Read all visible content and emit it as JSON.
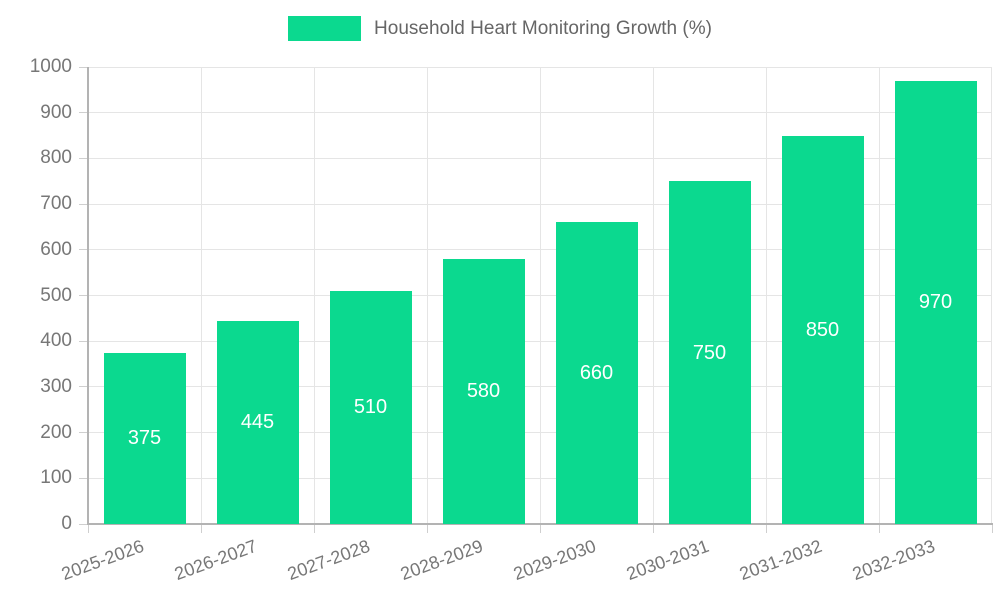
{
  "legend": {
    "label": "Household Heart Monitoring Growth (%)",
    "position": "top"
  },
  "colors": {
    "bar": "#0bd98f",
    "grid": "#e5e5e5",
    "axis": "#b3b3b3",
    "tick_mark": "#cfcfcf",
    "tick_text": "#777777",
    "legend_text": "#666666",
    "value_label": "#ffffff",
    "background": "#ffffff"
  },
  "chart_data": {
    "type": "bar",
    "title": "Household Heart Monitoring Growth (%)",
    "categories": [
      "2025-2026",
      "2026-2027",
      "2027-2028",
      "2028-2029",
      "2029-2030",
      "2030-2031",
      "2031-2032",
      "2032-2033"
    ],
    "values": [
      375,
      445,
      510,
      580,
      660,
      750,
      850,
      970
    ],
    "xlabel": "",
    "ylabel": "",
    "ylim": [
      0,
      1000
    ],
    "ytick_step": 100,
    "yticks": [
      0,
      100,
      200,
      300,
      400,
      500,
      600,
      700,
      800,
      900,
      1000
    ],
    "grid": true,
    "value_labels": "inside-center",
    "x_label_rotation_deg": -20,
    "legend_position": "top"
  }
}
